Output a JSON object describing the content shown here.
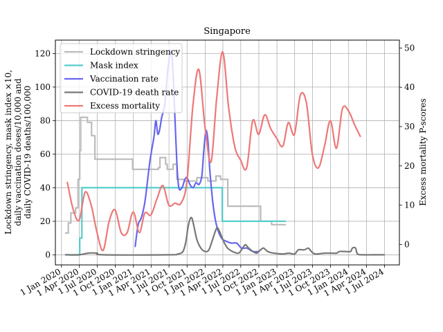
{
  "chart_data": {
    "type": "line",
    "title": "Singapore",
    "ylabel_left": [
      "Lockdown stringency, mask index ×10,",
      "daily vaccination doses/10,000 and",
      "daily COVID-19 deaths/100,000"
    ],
    "ylabel_right": "Excess mortality P-scores",
    "ylim_left": [
      -6,
      128
    ],
    "ylim_right": [
      -5.2,
      52
    ],
    "y_ticks_left": [
      0,
      20,
      40,
      60,
      80,
      100,
      120
    ],
    "y_ticks_right": [
      0,
      10,
      20,
      30,
      40,
      50
    ],
    "x_range": [
      "2019-12-01",
      "2024-09-15"
    ],
    "x_ticks": [
      {
        "date": "2020-01-01",
        "label": "1 Jan 2020"
      },
      {
        "date": "2020-04-01",
        "label": "1 Apr 2020"
      },
      {
        "date": "2020-07-01",
        "label": "1 Jul 2020"
      },
      {
        "date": "2020-10-01",
        "label": "1 Oct 2020"
      },
      {
        "date": "2021-01-01",
        "label": "1 Jan 2021"
      },
      {
        "date": "2021-04-01",
        "label": "1 Apr 2021"
      },
      {
        "date": "2021-07-01",
        "label": "1 Jul 2021"
      },
      {
        "date": "2021-10-01",
        "label": "1 Oct 2021"
      },
      {
        "date": "2022-01-01",
        "label": "1 Jan 2022"
      },
      {
        "date": "2022-04-01",
        "label": "1 Apr 2022"
      },
      {
        "date": "2022-07-01",
        "label": "1 Jul 2022"
      },
      {
        "date": "2022-10-01",
        "label": "1 Oct 2022"
      },
      {
        "date": "2023-01-01",
        "label": "1 Jan 2023"
      },
      {
        "date": "2023-04-01",
        "label": "1 Apr 2023"
      },
      {
        "date": "2023-07-01",
        "label": "1 Jul 2023"
      },
      {
        "date": "2023-10-01",
        "label": "1 Oct 2023"
      },
      {
        "date": "2024-01-01",
        "label": "1 Jan 2024"
      },
      {
        "date": "2024-04-01",
        "label": "1 Apr 2024"
      },
      {
        "date": "2024-07-01",
        "label": "1 Jul 2024"
      }
    ],
    "grid": true,
    "legend_position": "top-left",
    "series": [
      {
        "name": "Lockdown stringency",
        "color": "#bbbbbb",
        "axis": "left",
        "step": true,
        "points": [
          [
            "2020-01-22",
            13
          ],
          [
            "2020-02-05",
            19
          ],
          [
            "2020-02-18",
            25
          ],
          [
            "2020-03-13",
            28
          ],
          [
            "2020-03-25",
            45
          ],
          [
            "2020-04-03",
            62
          ],
          [
            "2020-04-08",
            82
          ],
          [
            "2020-05-12",
            79
          ],
          [
            "2020-06-02",
            71
          ],
          [
            "2020-06-19",
            57
          ],
          [
            "2020-12-28",
            51
          ],
          [
            "2021-05-08",
            52
          ],
          [
            "2021-05-16",
            58
          ],
          [
            "2021-06-14",
            54
          ],
          [
            "2021-06-22",
            51
          ],
          [
            "2021-07-22",
            54
          ],
          [
            "2021-08-10",
            45
          ],
          [
            "2021-09-15",
            44
          ],
          [
            "2021-11-20",
            46
          ],
          [
            "2022-01-15",
            44
          ],
          [
            "2022-02-25",
            47
          ],
          [
            "2022-03-20",
            45
          ],
          [
            "2022-04-26",
            29
          ],
          [
            "2022-10-10",
            20
          ],
          [
            "2022-12-05",
            18
          ],
          [
            "2023-02-13",
            18
          ]
        ]
      },
      {
        "name": "Mask index",
        "color": "#55cccc",
        "axis": "left",
        "step": true,
        "points": [
          [
            "2020-01-22",
            0
          ],
          [
            "2020-04-03",
            10
          ],
          [
            "2020-04-14",
            40
          ],
          [
            "2022-03-29",
            20
          ],
          [
            "2023-02-13",
            20
          ]
        ]
      },
      {
        "name": "Vaccination rate",
        "color": "#6666ee",
        "axis": "left",
        "step": false,
        "points": [
          [
            "2021-01-10",
            5
          ],
          [
            "2021-01-25",
            18
          ],
          [
            "2021-02-10",
            22
          ],
          [
            "2021-03-01",
            32
          ],
          [
            "2021-03-25",
            55
          ],
          [
            "2021-04-15",
            70
          ],
          [
            "2021-04-25",
            80
          ],
          [
            "2021-05-05",
            72
          ],
          [
            "2021-05-15",
            75
          ],
          [
            "2021-05-25",
            82
          ],
          [
            "2021-06-10",
            90
          ],
          [
            "2021-06-25",
            110
          ],
          [
            "2021-07-10",
            122
          ],
          [
            "2021-07-20",
            112
          ],
          [
            "2021-07-30",
            85
          ],
          [
            "2021-08-10",
            55
          ],
          [
            "2021-08-20",
            40
          ],
          [
            "2021-09-05",
            40
          ],
          [
            "2021-09-20",
            45
          ],
          [
            "2021-10-01",
            46
          ],
          [
            "2021-10-15",
            42
          ],
          [
            "2021-11-01",
            40
          ],
          [
            "2021-11-15",
            43
          ],
          [
            "2021-12-01",
            42
          ],
          [
            "2021-12-15",
            47
          ],
          [
            "2021-12-25",
            62
          ],
          [
            "2022-01-05",
            74
          ],
          [
            "2022-01-15",
            68
          ],
          [
            "2022-01-25",
            50
          ],
          [
            "2022-02-10",
            30
          ],
          [
            "2022-03-01",
            17
          ],
          [
            "2022-03-25",
            10
          ],
          [
            "2022-04-20",
            8
          ],
          [
            "2022-05-15",
            7
          ],
          [
            "2022-06-10",
            7
          ],
          [
            "2022-07-05",
            4
          ],
          [
            "2022-08-01",
            4
          ],
          [
            "2022-09-01",
            2
          ],
          [
            "2022-10-01",
            2
          ]
        ]
      },
      {
        "name": "COVID-19 death rate",
        "color": "#777777",
        "axis": "left",
        "step": false,
        "points": [
          [
            "2020-01-22",
            0
          ],
          [
            "2020-04-01",
            0
          ],
          [
            "2020-05-15",
            1
          ],
          [
            "2020-06-30",
            1
          ],
          [
            "2020-08-01",
            0
          ],
          [
            "2021-07-01",
            0
          ],
          [
            "2021-08-15",
            0.5
          ],
          [
            "2021-09-10",
            2
          ],
          [
            "2021-09-25",
            8
          ],
          [
            "2021-10-05",
            16
          ],
          [
            "2021-10-15",
            21
          ],
          [
            "2021-10-25",
            22
          ],
          [
            "2021-11-05",
            17
          ],
          [
            "2021-11-20",
            9
          ],
          [
            "2021-12-10",
            4
          ],
          [
            "2022-01-01",
            2
          ],
          [
            "2022-01-20",
            3
          ],
          [
            "2022-02-10",
            10
          ],
          [
            "2022-03-01",
            16
          ],
          [
            "2022-03-15",
            14
          ],
          [
            "2022-04-05",
            8
          ],
          [
            "2022-04-25",
            4
          ],
          [
            "2022-05-20",
            2
          ],
          [
            "2022-06-20",
            1
          ],
          [
            "2022-07-10",
            4
          ],
          [
            "2022-07-25",
            6
          ],
          [
            "2022-08-10",
            4
          ],
          [
            "2022-09-01",
            2
          ],
          [
            "2022-09-20",
            1
          ],
          [
            "2022-10-10",
            3
          ],
          [
            "2022-10-25",
            4
          ],
          [
            "2022-11-15",
            2
          ],
          [
            "2022-12-15",
            1
          ],
          [
            "2023-02-01",
            0.5
          ],
          [
            "2023-03-01",
            1
          ],
          [
            "2023-04-01",
            0.5
          ],
          [
            "2023-04-20",
            3
          ],
          [
            "2023-05-20",
            3
          ],
          [
            "2023-06-10",
            4
          ],
          [
            "2023-06-25",
            2
          ],
          [
            "2023-07-15",
            0.5
          ],
          [
            "2023-09-01",
            1
          ],
          [
            "2023-10-01",
            1
          ],
          [
            "2023-11-01",
            1
          ],
          [
            "2023-11-15",
            2
          ],
          [
            "2023-12-15",
            2
          ],
          [
            "2024-01-10",
            2
          ],
          [
            "2024-01-20",
            4
          ],
          [
            "2024-02-05",
            4
          ],
          [
            "2024-02-15",
            0.5
          ],
          [
            "2024-03-15",
            0
          ],
          [
            "2024-05-01",
            0
          ],
          [
            "2024-06-30",
            0
          ]
        ]
      },
      {
        "name": "Excess mortality",
        "color": "#ee7777",
        "axis": "right",
        "step": false,
        "points": [
          [
            "2020-01-31",
            15.8
          ],
          [
            "2020-02-29",
            9
          ],
          [
            "2020-03-31",
            6.2
          ],
          [
            "2020-04-30",
            13.3
          ],
          [
            "2020-05-31",
            10
          ],
          [
            "2020-06-30",
            3
          ],
          [
            "2020-07-31",
            -1.5
          ],
          [
            "2020-08-31",
            6
          ],
          [
            "2020-09-30",
            8.8
          ],
          [
            "2020-10-31",
            3
          ],
          [
            "2020-11-30",
            3
          ],
          [
            "2020-12-31",
            8.3
          ],
          [
            "2021-01-31",
            3
          ],
          [
            "2021-02-28",
            8
          ],
          [
            "2021-03-31",
            7.5
          ],
          [
            "2021-04-30",
            11.5
          ],
          [
            "2021-05-31",
            15
          ],
          [
            "2021-06-30",
            10
          ],
          [
            "2021-07-31",
            10.5
          ],
          [
            "2021-08-31",
            10.5
          ],
          [
            "2021-09-30",
            16
          ],
          [
            "2021-10-31",
            35.5
          ],
          [
            "2021-11-30",
            44.5
          ],
          [
            "2021-12-31",
            30
          ],
          [
            "2022-01-31",
            21
          ],
          [
            "2022-02-28",
            37
          ],
          [
            "2022-03-31",
            49
          ],
          [
            "2022-04-30",
            35
          ],
          [
            "2022-05-31",
            25
          ],
          [
            "2022-06-30",
            21.5
          ],
          [
            "2022-07-31",
            19.5
          ],
          [
            "2022-08-31",
            31.5
          ],
          [
            "2022-09-30",
            28
          ],
          [
            "2022-10-31",
            33
          ],
          [
            "2022-11-30",
            29.5
          ],
          [
            "2022-12-31",
            27
          ],
          [
            "2023-01-31",
            25
          ],
          [
            "2023-02-28",
            31
          ],
          [
            "2023-03-31",
            28
          ],
          [
            "2023-04-30",
            38
          ],
          [
            "2023-05-31",
            36
          ],
          [
            "2023-06-30",
            23
          ],
          [
            "2023-07-31",
            19.5
          ],
          [
            "2023-08-31",
            25
          ],
          [
            "2023-09-30",
            31.5
          ],
          [
            "2023-10-31",
            24.5
          ],
          [
            "2023-11-30",
            34.5
          ],
          [
            "2023-12-31",
            34
          ],
          [
            "2024-01-31",
            30.5
          ],
          [
            "2024-02-29",
            27.5
          ]
        ]
      }
    ]
  }
}
